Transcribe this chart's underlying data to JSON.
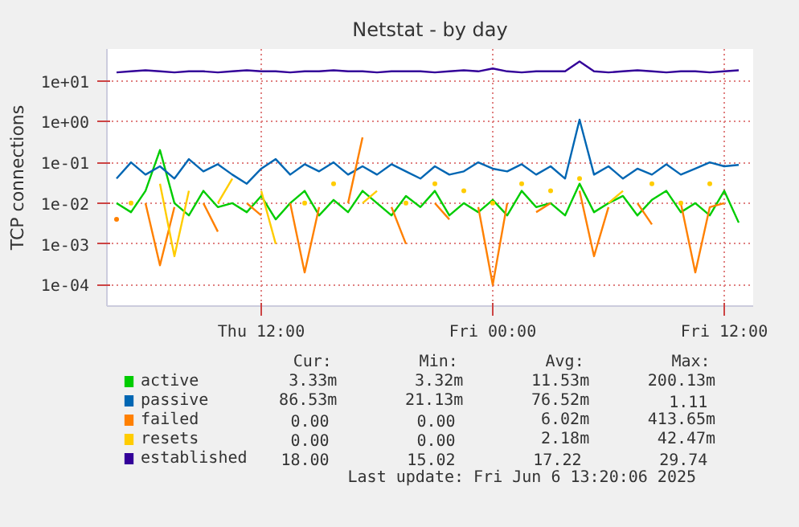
{
  "chart_data": {
    "type": "line",
    "title": "Netstat - by day",
    "ylabel": "TCP connections",
    "log": "y",
    "x": [
      "2025-06-05T04:30",
      "2025-06-05T05:15",
      "2025-06-05T06:00",
      "2025-06-05T06:45",
      "2025-06-05T07:30",
      "2025-06-05T08:15",
      "2025-06-05T09:00",
      "2025-06-05T09:45",
      "2025-06-05T10:30",
      "2025-06-05T11:15",
      "2025-06-05T12:00",
      "2025-06-05T12:45",
      "2025-06-05T13:30",
      "2025-06-05T14:15",
      "2025-06-05T15:00",
      "2025-06-05T15:45",
      "2025-06-05T16:30",
      "2025-06-05T17:15",
      "2025-06-05T18:00",
      "2025-06-05T18:45",
      "2025-06-05T19:30",
      "2025-06-05T20:15",
      "2025-06-05T21:00",
      "2025-06-05T21:45",
      "2025-06-05T22:30",
      "2025-06-05T23:15",
      "2025-06-06T00:00",
      "2025-06-06T00:45",
      "2025-06-06T01:30",
      "2025-06-06T02:15",
      "2025-06-06T03:00",
      "2025-06-06T03:45",
      "2025-06-06T04:30",
      "2025-06-06T05:15",
      "2025-06-06T06:00",
      "2025-06-06T06:45",
      "2025-06-06T07:30",
      "2025-06-06T08:15",
      "2025-06-06T09:00",
      "2025-06-06T09:45",
      "2025-06-06T10:30",
      "2025-06-06T11:15",
      "2025-06-06T12:00",
      "2025-06-06T12:45"
    ],
    "series": [
      {
        "name": "active",
        "color": "#00cc00",
        "values": [
          0.01,
          0.006,
          0.02,
          0.2,
          0.01,
          0.005,
          0.02,
          0.008,
          0.01,
          0.006,
          0.015,
          0.004,
          0.01,
          0.02,
          0.005,
          0.012,
          0.006,
          0.02,
          0.01,
          0.005,
          0.015,
          0.008,
          0.02,
          0.005,
          0.01,
          0.006,
          0.012,
          0.005,
          0.02,
          0.008,
          0.01,
          0.005,
          0.03,
          0.006,
          0.01,
          0.015,
          0.005,
          0.012,
          0.02,
          0.006,
          0.01,
          0.005,
          0.02,
          0.00333
        ]
      },
      {
        "name": "passive",
        "color": "#0066b3",
        "values": [
          0.04,
          0.1,
          0.05,
          0.08,
          0.04,
          0.12,
          0.06,
          0.09,
          0.05,
          0.03,
          0.07,
          0.12,
          0.05,
          0.09,
          0.06,
          0.1,
          0.05,
          0.08,
          0.05,
          0.09,
          0.06,
          0.04,
          0.08,
          0.05,
          0.06,
          0.1,
          0.07,
          0.06,
          0.09,
          0.05,
          0.08,
          0.04,
          1.11,
          0.05,
          0.08,
          0.04,
          0.07,
          0.05,
          0.09,
          0.05,
          0.07,
          0.1,
          0.08,
          0.0865
        ]
      },
      {
        "name": "failed",
        "color": "#ff8000",
        "values": [
          0.004,
          null,
          0.01,
          0.0003,
          0.008,
          null,
          0.01,
          0.002,
          null,
          0.01,
          0.005,
          null,
          0.01,
          0.0002,
          0.008,
          null,
          0.01,
          0.41,
          null,
          0.008,
          0.001,
          null,
          0.01,
          0.004,
          null,
          0.008,
          0.0001,
          0.01,
          null,
          0.006,
          0.01,
          null,
          0.02,
          0.0005,
          0.008,
          null,
          0.01,
          0.003,
          null,
          0.01,
          0.0002,
          0.008,
          0.01,
          null
        ]
      },
      {
        "name": "resets",
        "color": "#ffcc00",
        "values": [
          null,
          0.01,
          null,
          0.03,
          0.0005,
          0.02,
          null,
          0.01,
          0.04,
          null,
          0.02,
          0.001,
          null,
          0.01,
          null,
          0.03,
          null,
          0.01,
          0.02,
          null,
          0.01,
          null,
          0.03,
          null,
          0.02,
          null,
          0.01,
          null,
          0.03,
          null,
          0.02,
          null,
          0.04,
          null,
          0.01,
          0.02,
          null,
          0.03,
          null,
          0.01,
          null,
          0.03,
          null,
          null
        ]
      },
      {
        "name": "established",
        "color": "#330099",
        "values": [
          16,
          17,
          18,
          17,
          16,
          17,
          17,
          16,
          17,
          18,
          17,
          17,
          16,
          17,
          17,
          18,
          17,
          17,
          16,
          17,
          17,
          17,
          16,
          17,
          18,
          17,
          20,
          17,
          16,
          17,
          17,
          17,
          29.74,
          17,
          16,
          17,
          18,
          17,
          16,
          17,
          17,
          16,
          17,
          18
        ]
      }
    ],
    "xlim": [
      "2025-06-05T04:00",
      "2025-06-06T13:30"
    ],
    "xticks": [
      {
        "value": "2025-06-05T12:00",
        "label": "Thu 12:00"
      },
      {
        "value": "2025-06-06T00:00",
        "label": "Fri 00:00"
      },
      {
        "value": "2025-06-06T12:00",
        "label": "Fri 12:00"
      }
    ],
    "ylim": [
      3e-05,
      60
    ],
    "yticks": [
      {
        "value": 0.0001,
        "label": "1e-04"
      },
      {
        "value": 0.001,
        "label": "1e-03"
      },
      {
        "value": 0.01,
        "label": "1e-02"
      },
      {
        "value": 0.1,
        "label": "1e-01"
      },
      {
        "value": 1,
        "label": "1e+00"
      },
      {
        "value": 10,
        "label": "1e+01"
      }
    ],
    "grid": true,
    "legend": "bottom",
    "annotations": [
      "Cur:",
      "Min:",
      "Avg:",
      "Max:",
      "3.33m",
      "3.32m",
      "11.53m",
      "200.13m",
      "86.53m",
      "21.13m",
      "76.52m",
      "1.11",
      "0.00",
      "0.00",
      "6.02m",
      "413.65m",
      "0.00",
      "0.00",
      "2.18m",
      "42.47m",
      "18.00",
      "15.02",
      "17.22",
      "29.74",
      "Last update:  Fri Jun  6 13:20:06 2025"
    ]
  }
}
